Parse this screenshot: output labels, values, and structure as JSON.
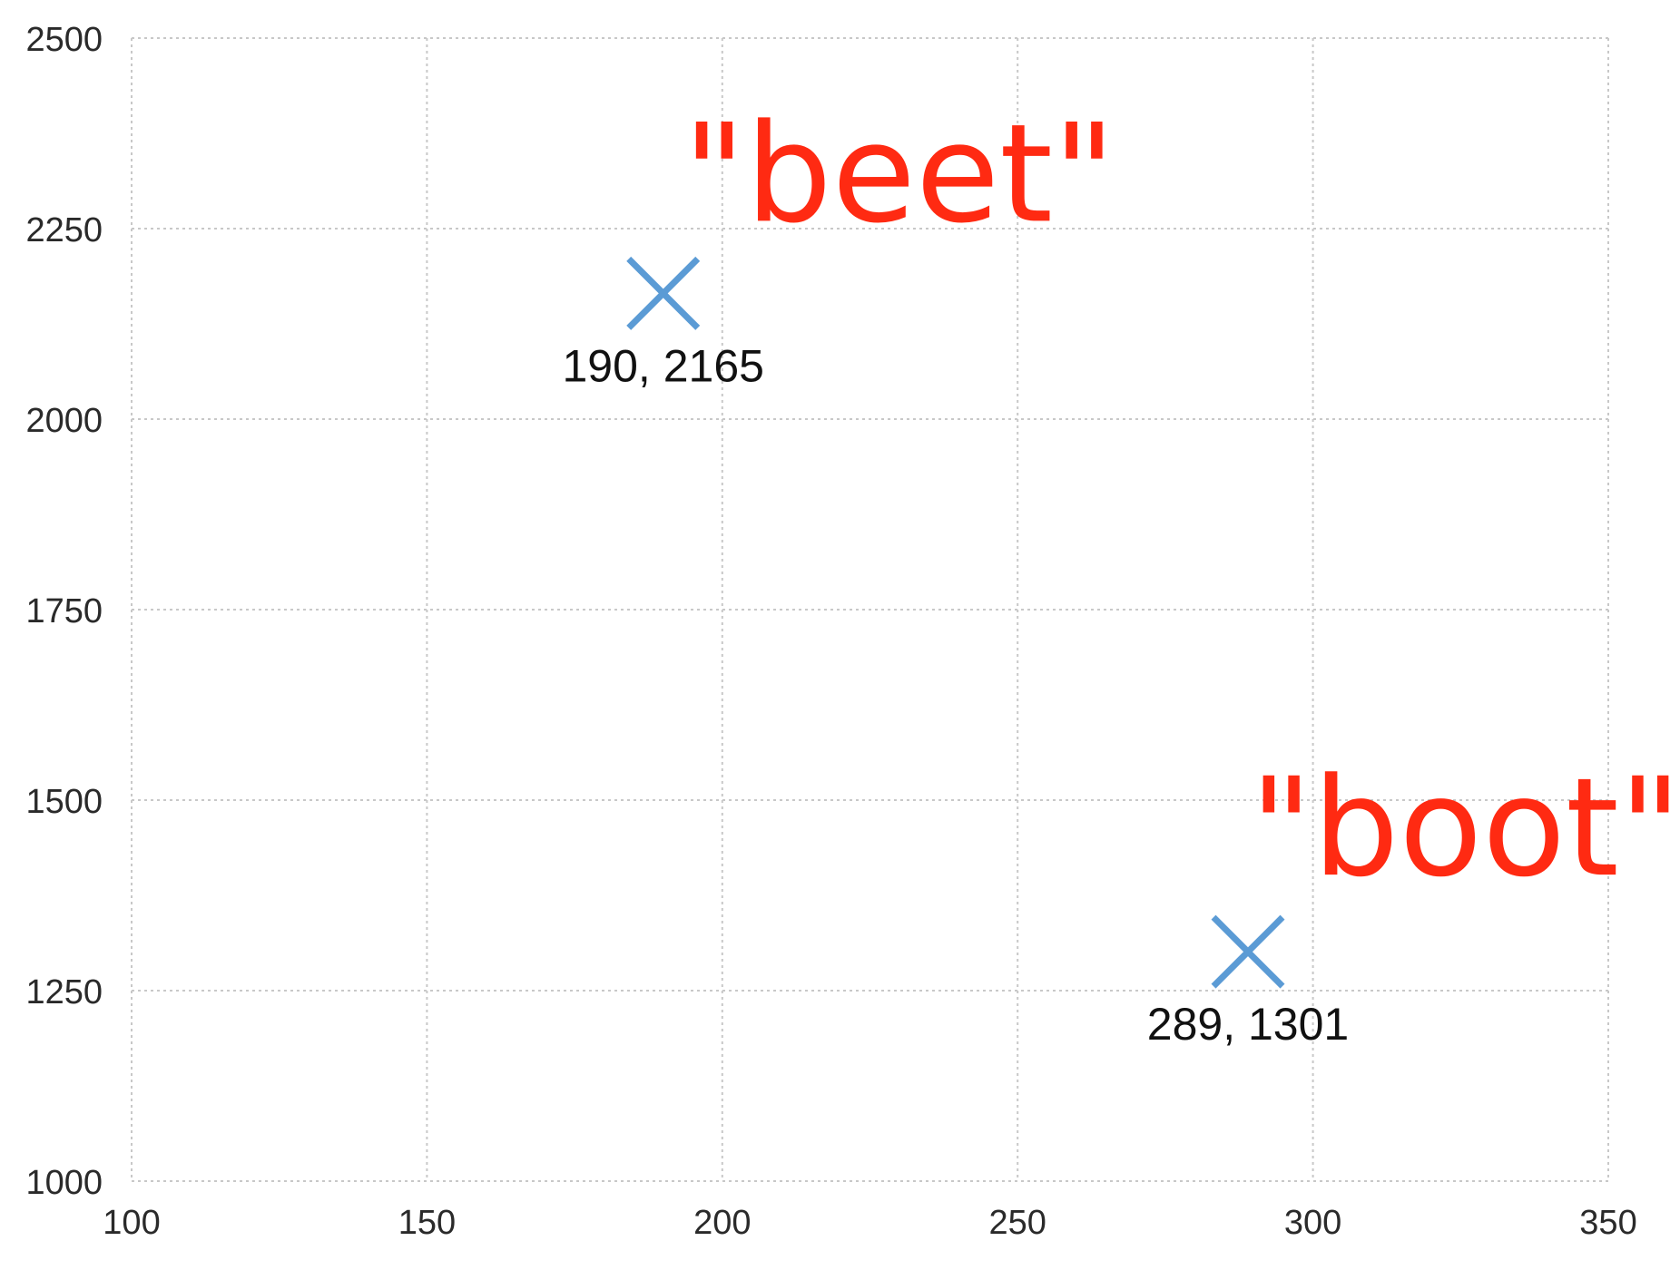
{
  "colors": {
    "marker": "#5b9bd5",
    "word": "#ff2a12",
    "grid": "#c8c8c8",
    "text": "#2a2a2a"
  },
  "chart_data": {
    "type": "scatter",
    "title": "",
    "xlabel": "",
    "ylabel": "",
    "xlim": [
      100,
      350
    ],
    "ylim": [
      1000,
      2500
    ],
    "xticks": [
      100,
      150,
      200,
      250,
      300,
      350
    ],
    "yticks": [
      1000,
      1250,
      1500,
      1750,
      2000,
      2250,
      2500
    ],
    "xtick_labels": [
      "100",
      "150",
      "200",
      "250",
      "300",
      "350"
    ],
    "ytick_labels": [
      "1000",
      "1250",
      "1500",
      "1750",
      "2000",
      "2250",
      "2500"
    ],
    "grid": true,
    "marker": "x",
    "points": [
      {
        "x": 190,
        "y": 2165,
        "label": "190, 2165",
        "word": "\"beet\""
      },
      {
        "x": 289,
        "y": 1301,
        "label": "289, 1301",
        "word": "\"boot\""
      }
    ]
  }
}
